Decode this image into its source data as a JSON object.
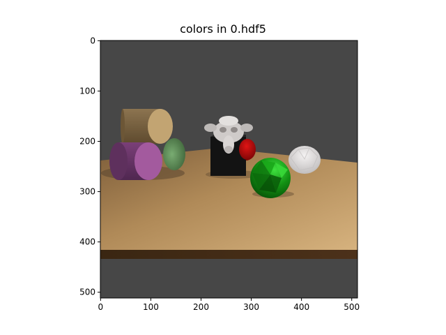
{
  "figure": {
    "title": "colors in 0.hdf5",
    "image_width": 512,
    "image_height": 512,
    "x_ticks": [
      "0",
      "100",
      "200",
      "300",
      "400",
      "500"
    ],
    "y_ticks": [
      "0",
      "100",
      "200",
      "300",
      "400",
      "500"
    ]
  },
  "scene": {
    "background": "#474747",
    "objects": [
      {
        "name": "table",
        "color": "#b8925e"
      },
      {
        "name": "table-edge",
        "color": "#4a3018"
      },
      {
        "name": "tan-cylinder",
        "color": "#b99b68"
      },
      {
        "name": "purple-cylinder",
        "color": "#8e4c8a"
      },
      {
        "name": "green-cylinder",
        "color": "#5e8f5a"
      },
      {
        "name": "black-cube",
        "color": "#151515"
      },
      {
        "name": "red-sphere",
        "color": "#c81010"
      },
      {
        "name": "monkey-head",
        "color": "#d6d2d0"
      },
      {
        "name": "white-icosphere",
        "color": "#e6e4e4"
      },
      {
        "name": "green-icosphere",
        "color": "#1f9f1f"
      }
    ]
  }
}
